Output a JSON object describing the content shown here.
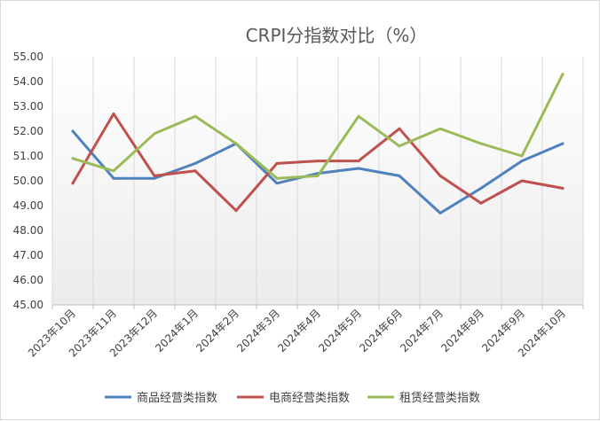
{
  "chart_data": {
    "type": "line",
    "title": "CRPI分指数对比（%）",
    "xlabel": "",
    "ylabel": "",
    "ylim": [
      45.0,
      55.0
    ],
    "ytick_step": 1.0,
    "yticks": [
      "45.00",
      "46.00",
      "47.00",
      "48.00",
      "49.00",
      "50.00",
      "51.00",
      "52.00",
      "53.00",
      "54.00",
      "55.00"
    ],
    "grid": "vertical",
    "legend_position": "bottom",
    "categories": [
      "2023年10月",
      "2023年11月",
      "2023年12月",
      "2024年1月",
      "2024年2月",
      "2024年3月",
      "2024年4月",
      "2024年5月",
      "2024年6月",
      "2024年7月",
      "2024年8月",
      "2024年9月",
      "2024年10月"
    ],
    "series": [
      {
        "name": "商品经营类指数",
        "color": "#4f81bd",
        "values": [
          52.0,
          50.1,
          50.1,
          50.7,
          51.5,
          49.9,
          50.3,
          50.5,
          50.2,
          48.7,
          49.7,
          50.8,
          51.5
        ]
      },
      {
        "name": "电商经营类指数",
        "color": "#c0504d",
        "values": [
          49.9,
          52.7,
          50.2,
          50.4,
          48.8,
          50.7,
          50.8,
          50.8,
          52.1,
          50.2,
          49.1,
          50.0,
          49.7
        ]
      },
      {
        "name": "租赁经营类指数",
        "color": "#9bbb59",
        "values": [
          50.9,
          50.4,
          51.9,
          52.6,
          51.5,
          50.1,
          50.2,
          52.6,
          51.4,
          52.1,
          51.5,
          51.0,
          54.3
        ]
      }
    ]
  }
}
